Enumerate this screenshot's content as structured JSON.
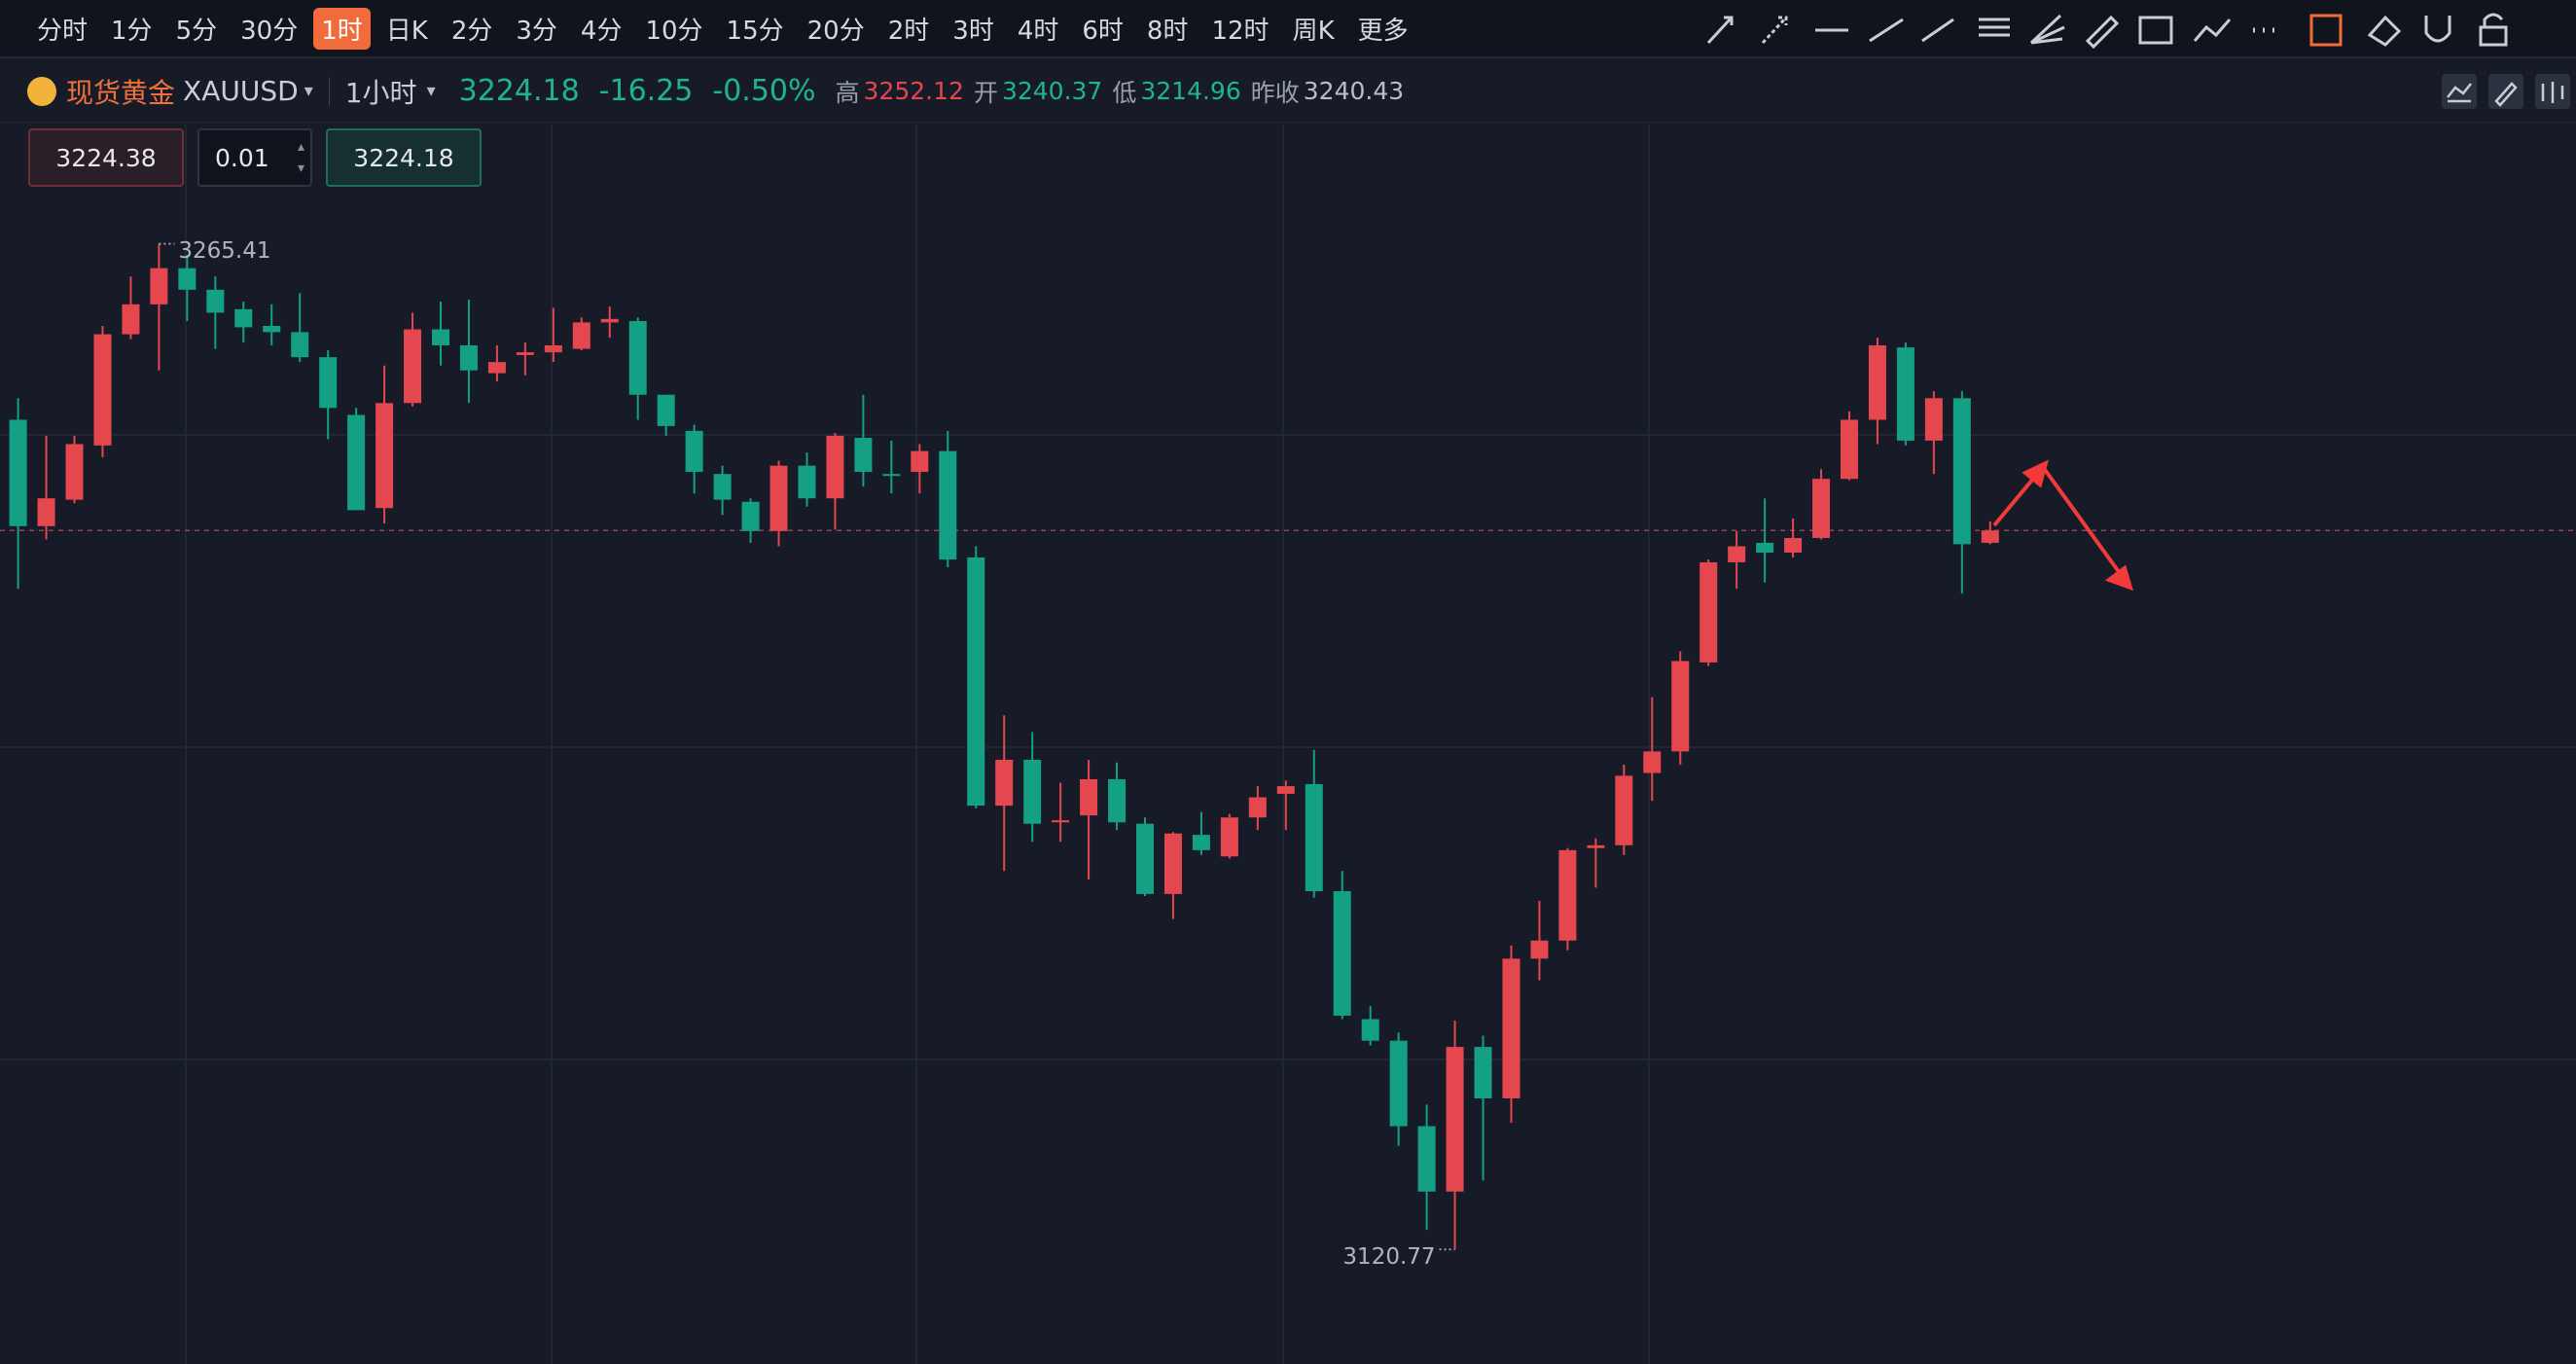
{
  "toolbar": {
    "intervals": [
      "分时",
      "1分",
      "5分",
      "30分",
      "1时",
      "日K",
      "2分",
      "3分",
      "4分",
      "10分",
      "15分",
      "20分",
      "2时",
      "3时",
      "4时",
      "6时",
      "8时",
      "12时",
      "周K",
      "更多"
    ],
    "active": 4
  },
  "quote": {
    "name": "现货黄金",
    "symbol": "XAUUSD",
    "interval": "1小时",
    "price": 3224.18,
    "change": -16.25,
    "change_pct": "-0.50%",
    "high_label": "高",
    "high": 3252.12,
    "open_label": "开",
    "open": 3240.37,
    "low_label": "低",
    "low": 3214.96,
    "prev_close_label": "昨收",
    "prev_close": 3240.43
  },
  "order": {
    "sell": 3224.38,
    "qty": 0.01,
    "buy": 3224.18
  },
  "chart_data": {
    "type": "candlestick",
    "ylim": [
      3104.3,
      3282.7
    ],
    "up_color": "#e5474f",
    "down_color": "#14a084",
    "last_price": 3224.18,
    "max_label": 3265.41,
    "min_label": 3120.77,
    "ohlc": [
      [
        3240.1,
        3243.2,
        3215.8,
        3224.8
      ],
      [
        3224.8,
        3237.8,
        3222.9,
        3228.8
      ],
      [
        3228.6,
        3237.8,
        3228.1,
        3236.6
      ],
      [
        3236.4,
        3253.6,
        3234.7,
        3252.4
      ],
      [
        3252.4,
        3260.7,
        3251.7,
        3256.7
      ],
      [
        3256.7,
        3265.41,
        3247.2,
        3261.9
      ],
      [
        3261.9,
        3263.8,
        3254.3,
        3258.8
      ],
      [
        3258.8,
        3260.7,
        3250.3,
        3255.5
      ],
      [
        3256.0,
        3257.1,
        3251.2,
        3253.4
      ],
      [
        3253.6,
        3256.7,
        3250.8,
        3252.7
      ],
      [
        3252.7,
        3258.3,
        3248.4,
        3249.1
      ],
      [
        3249.1,
        3250.1,
        3237.3,
        3241.8
      ],
      [
        3240.8,
        3241.8,
        3227.1,
        3227.1
      ],
      [
        3227.4,
        3247.9,
        3225.2,
        3242.5
      ],
      [
        3242.5,
        3255.5,
        3242.0,
        3253.1
      ],
      [
        3253.1,
        3257.1,
        3247.9,
        3250.8
      ],
      [
        3250.8,
        3257.4,
        3242.5,
        3247.2
      ],
      [
        3246.8,
        3250.8,
        3245.6,
        3248.4
      ],
      [
        3249.4,
        3251.2,
        3246.5,
        3249.8
      ],
      [
        3249.8,
        3256.2,
        3248.4,
        3250.8
      ],
      [
        3250.3,
        3254.8,
        3250.1,
        3254.1
      ],
      [
        3254.1,
        3256.4,
        3251.9,
        3254.6
      ],
      [
        3254.3,
        3254.8,
        3240.1,
        3243.7
      ],
      [
        3243.7,
        3243.7,
        3237.8,
        3239.2
      ],
      [
        3238.5,
        3239.4,
        3229.5,
        3232.6
      ],
      [
        3232.3,
        3233.5,
        3226.4,
        3228.6
      ],
      [
        3228.3,
        3228.8,
        3222.4,
        3224.1
      ],
      [
        3224.1,
        3234.2,
        3221.9,
        3233.5
      ],
      [
        3233.5,
        3235.4,
        3227.6,
        3228.8
      ],
      [
        3228.8,
        3238.2,
        3224.3,
        3237.8
      ],
      [
        3237.5,
        3243.7,
        3230.5,
        3232.6
      ],
      [
        3232.3,
        3237.1,
        3229.5,
        3232.1
      ],
      [
        3232.6,
        3236.6,
        3229.5,
        3235.6
      ],
      [
        3235.6,
        3238.5,
        3218.9,
        3220.0
      ],
      [
        3220.3,
        3221.9,
        3184.2,
        3184.6
      ],
      [
        3184.6,
        3197.6,
        3175.2,
        3191.2
      ],
      [
        3191.2,
        3195.2,
        3179.4,
        3182.0
      ],
      [
        3182.2,
        3187.9,
        3179.4,
        3182.5
      ],
      [
        3183.2,
        3191.2,
        3174.0,
        3188.4
      ],
      [
        3188.4,
        3190.8,
        3181.1,
        3182.2
      ],
      [
        3182.0,
        3182.9,
        3171.6,
        3171.9
      ],
      [
        3171.9,
        3180.8,
        3168.3,
        3180.6
      ],
      [
        3180.4,
        3183.7,
        3177.5,
        3178.2
      ],
      [
        3177.3,
        3183.4,
        3177.0,
        3182.9
      ],
      [
        3182.9,
        3187.4,
        3181.1,
        3185.8
      ],
      [
        3186.3,
        3188.2,
        3181.1,
        3187.4
      ],
      [
        3187.7,
        3192.6,
        3171.4,
        3172.3
      ],
      [
        3172.3,
        3175.2,
        3153.9,
        3154.4
      ],
      [
        3153.9,
        3155.8,
        3150.1,
        3150.8
      ],
      [
        3150.8,
        3152.0,
        3135.7,
        3138.5
      ],
      [
        3138.5,
        3141.6,
        3123.6,
        3129.1
      ],
      [
        3129.1,
        3153.7,
        3120.77,
        3149.9
      ],
      [
        3149.9,
        3151.5,
        3130.7,
        3142.5
      ],
      [
        3142.5,
        3164.5,
        3139.0,
        3162.6
      ],
      [
        3162.6,
        3170.9,
        3159.5,
        3165.2
      ],
      [
        3165.2,
        3178.5,
        3163.8,
        3178.2
      ],
      [
        3178.5,
        3179.9,
        3172.8,
        3178.9
      ],
      [
        3178.9,
        3190.5,
        3177.5,
        3188.9
      ],
      [
        3189.3,
        3200.2,
        3185.3,
        3192.4
      ],
      [
        3192.4,
        3206.8,
        3190.5,
        3205.4
      ],
      [
        3205.2,
        3220.0,
        3204.7,
        3219.6
      ],
      [
        3219.6,
        3224.1,
        3215.8,
        3221.9
      ],
      [
        3222.4,
        3228.8,
        3216.7,
        3221.0
      ],
      [
        3221.0,
        3225.9,
        3220.3,
        3223.1
      ],
      [
        3223.1,
        3233.0,
        3222.9,
        3231.6
      ],
      [
        3231.6,
        3241.3,
        3231.4,
        3240.1
      ],
      [
        3240.1,
        3251.9,
        3236.6,
        3250.8
      ],
      [
        3250.5,
        3251.2,
        3236.4,
        3237.1
      ],
      [
        3237.1,
        3244.2,
        3232.3,
        3243.2
      ],
      [
        3243.2,
        3244.2,
        3215.1,
        3222.2
      ],
      [
        3222.4,
        3225.5,
        3222.2,
        3224.18
      ]
    ]
  }
}
